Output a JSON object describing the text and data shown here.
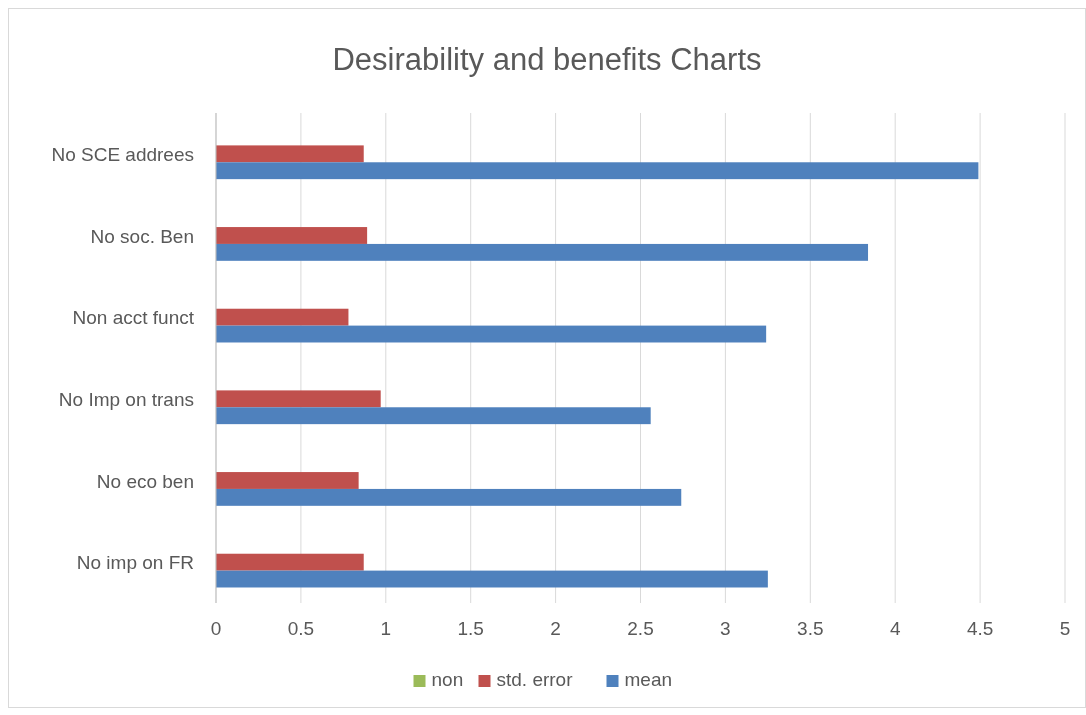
{
  "chart_data": {
    "type": "bar",
    "orientation": "horizontal",
    "title": "Desirability and benefits Charts",
    "categories": [
      "No SCE addrees",
      "No soc. Ben",
      "Non acct funct",
      "No Imp on trans",
      "No eco ben",
      "No imp on FR"
    ],
    "series": [
      {
        "name": "non",
        "color": "#9bbb59",
        "values": [
          null,
          null,
          null,
          null,
          null,
          null
        ]
      },
      {
        "name": "std. error",
        "color": "#c0504d",
        "values": [
          0.87,
          0.89,
          0.78,
          0.97,
          0.84,
          0.87
        ]
      },
      {
        "name": "mean",
        "color": "#4f81bd",
        "values": [
          4.49,
          3.84,
          3.24,
          2.56,
          2.74,
          3.25
        ]
      }
    ],
    "xlim": [
      0,
      5
    ],
    "xticks": [
      0,
      0.5,
      1,
      1.5,
      2,
      2.5,
      3,
      3.5,
      4,
      4.5,
      5
    ],
    "grid": "x",
    "legend": "bottom"
  }
}
